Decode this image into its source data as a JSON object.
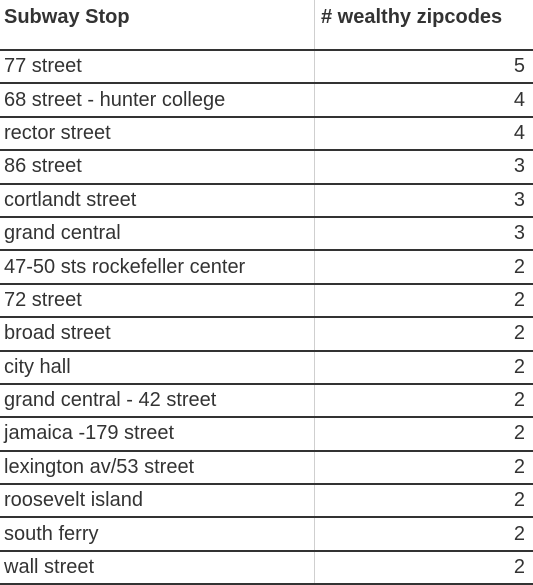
{
  "table": {
    "headers": {
      "stop": "Subway Stop",
      "count": "# wealthy zipcodes"
    },
    "rows": [
      {
        "stop": "77 street",
        "count": "5"
      },
      {
        "stop": "68 street - hunter college",
        "count": "4"
      },
      {
        "stop": "rector street",
        "count": "4"
      },
      {
        "stop": "86 street",
        "count": "3"
      },
      {
        "stop": "cortlandt street",
        "count": "3"
      },
      {
        "stop": "grand central",
        "count": "3"
      },
      {
        "stop": "47-50 sts rockefeller center",
        "count": "2"
      },
      {
        "stop": "72 street",
        "count": "2"
      },
      {
        "stop": "broad street",
        "count": "2"
      },
      {
        "stop": "city hall",
        "count": "2"
      },
      {
        "stop": "grand central - 42 street",
        "count": "2"
      },
      {
        "stop": "jamaica -179 street",
        "count": "2"
      },
      {
        "stop": "lexington av/53 street",
        "count": "2"
      },
      {
        "stop": "roosevelt island",
        "count": "2"
      },
      {
        "stop": "south ferry",
        "count": "2"
      },
      {
        "stop": "wall street",
        "count": "2"
      }
    ]
  }
}
